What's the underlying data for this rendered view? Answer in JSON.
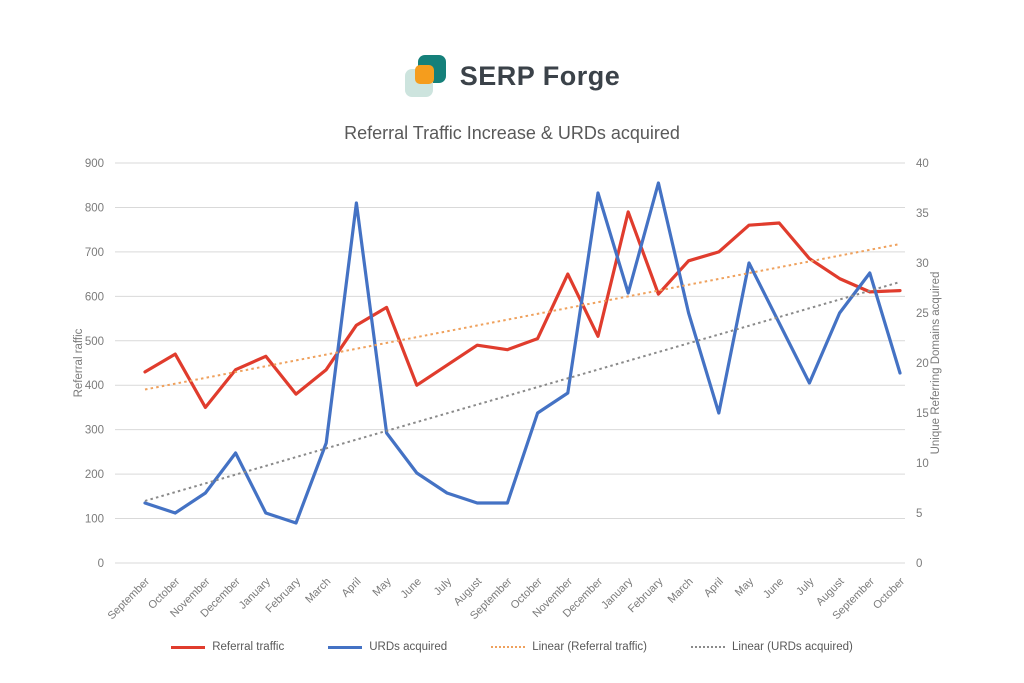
{
  "logo": {
    "text": "SERP Forge",
    "colors": {
      "teal": "#15807a",
      "pale": "#cde4de",
      "orange": "#f59d1d",
      "text": "#3b4249"
    }
  },
  "chart_data": {
    "type": "line",
    "title": "Referral Traffic Increase & URDs acquired",
    "categories": [
      "September",
      "October",
      "November",
      "December",
      "January",
      "February",
      "March",
      "April",
      "May",
      "June",
      "July",
      "August",
      "September",
      "October",
      "November",
      "December",
      "January",
      "February",
      "March",
      "April",
      "May",
      "June",
      "July",
      "August",
      "September",
      "October"
    ],
    "series": [
      {
        "name": "Referral traffic",
        "axis": "left",
        "color": "#e03c2d",
        "style": "solid",
        "values": [
          430,
          470,
          350,
          435,
          465,
          380,
          435,
          535,
          575,
          400,
          445,
          490,
          480,
          505,
          650,
          510,
          790,
          605,
          680,
          700,
          760,
          765,
          685,
          640,
          610,
          613
        ]
      },
      {
        "name": "URDs acquired",
        "axis": "right",
        "color": "#4472c4",
        "style": "solid",
        "values": [
          6,
          5,
          7,
          11,
          5,
          4,
          12,
          36,
          13,
          9,
          7,
          6,
          6,
          15,
          17,
          37,
          27,
          38,
          25,
          15,
          30,
          24,
          18,
          25,
          29,
          19
        ]
      },
      {
        "name": "Linear (Referral traffic)",
        "axis": "left",
        "color": "#efa15d",
        "style": "dotted",
        "trend_of": 0
      },
      {
        "name": "Linear (URDs acquired)",
        "axis": "right",
        "color": "#8a8a8a",
        "style": "dotted",
        "trend_of": 1
      }
    ],
    "left_axis": {
      "label": "Referral raffic",
      "min": 0,
      "max": 900,
      "step": 100
    },
    "right_axis": {
      "label": "Unique Referring Domains acquired",
      "min": 0,
      "max": 40,
      "step": 5
    },
    "grid": true,
    "legend_position": "bottom",
    "colors": {
      "gridline": "#d9d9d9",
      "tick_text": "#7b7b7b",
      "title_text": "#595959"
    }
  }
}
